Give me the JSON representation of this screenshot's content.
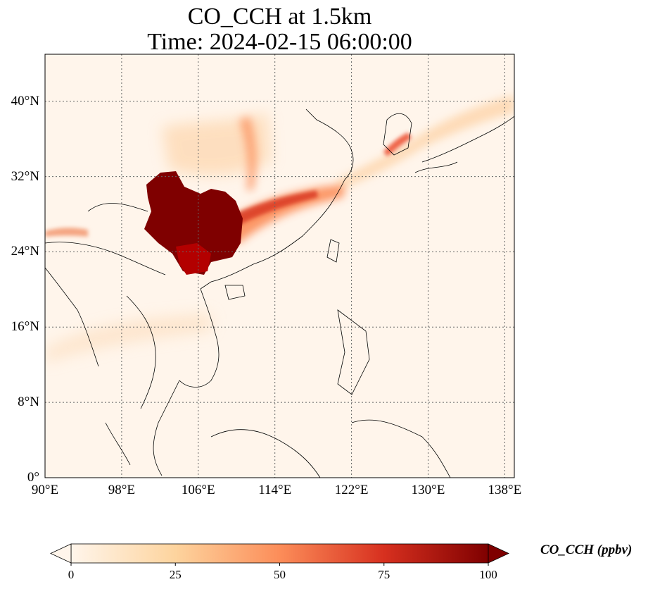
{
  "title": {
    "line1": "CO_CCH at 1.5km",
    "line2": "Time: 2024-02-15 06:00:00"
  },
  "map": {
    "lon_range": [
      90,
      139
    ],
    "lat_range": [
      0,
      45
    ],
    "lat_ticks": [
      {
        "value": 0,
        "label": "0°"
      },
      {
        "value": 8,
        "label": "8°N"
      },
      {
        "value": 16,
        "label": "16°N"
      },
      {
        "value": 24,
        "label": "24°N"
      },
      {
        "value": 32,
        "label": "32°N"
      },
      {
        "value": 40,
        "label": "40°N"
      }
    ],
    "lon_ticks": [
      {
        "value": 90,
        "label": "90°E"
      },
      {
        "value": 98,
        "label": "98°E"
      },
      {
        "value": 106,
        "label": "106°E"
      },
      {
        "value": 114,
        "label": "114°E"
      },
      {
        "value": 122,
        "label": "122°E"
      },
      {
        "value": 130,
        "label": "130°E"
      },
      {
        "value": 138,
        "label": "138°E"
      }
    ],
    "gridlines": "dotted",
    "colormap": "OrRd",
    "background_color": "#fff5eb"
  },
  "colorbar": {
    "label": "CO_CCH (ppbv)",
    "min": 0,
    "max": 100,
    "ticks": [
      {
        "value": 0,
        "label": "0"
      },
      {
        "value": 25,
        "label": "25"
      },
      {
        "value": 50,
        "label": "50"
      },
      {
        "value": 75,
        "label": "75"
      },
      {
        "value": 100,
        "label": "100"
      }
    ],
    "colors": [
      "#fff5eb",
      "#fdd49e",
      "#fc8d59",
      "#d7301f",
      "#7f0000"
    ],
    "extend": "both"
  }
}
